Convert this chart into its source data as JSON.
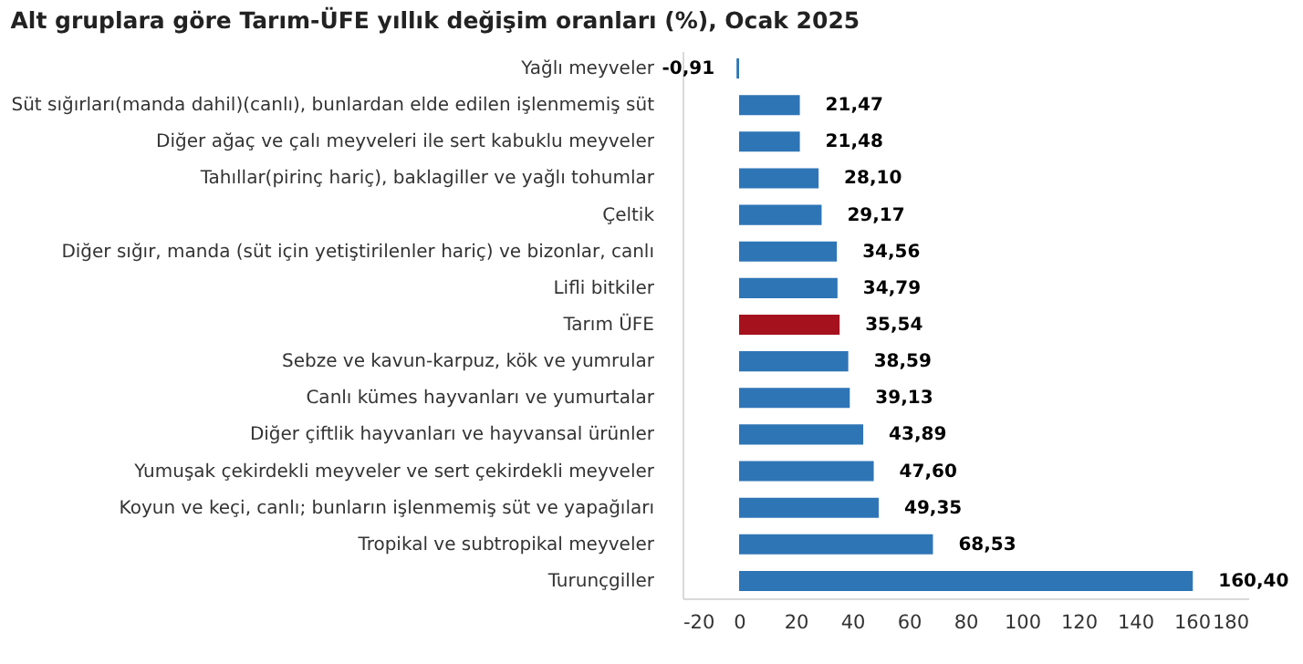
{
  "chart_data": {
    "type": "bar",
    "orientation": "horizontal",
    "title": "Alt gruplara göre Tarım-ÜFE yıllık değişim oranları (%), Ocak 2025",
    "categories": [
      "Yağlı meyveler",
      "Süt sığırları(manda dahil)(canlı), bunlardan elde edilen işlenmemiş süt",
      "Diğer ağaç ve çalı meyveleri ile sert kabuklu meyveler",
      "Tahıllar(pirinç hariç), baklagiller ve yağlı tohumlar",
      "Çeltik",
      "Diğer sığır, manda (süt için yetiştirilenler hariç) ve bizonlar, canlı",
      "Lifli bitkiler",
      "Tarım ÜFE",
      "Sebze ve kavun-karpuz, kök ve yumrular",
      "Canlı kümes hayvanları ve yumurtalar",
      "Diğer çiftlik hayvanları ve hayvansal ürünler",
      "Yumuşak çekirdekli meyveler ve sert çekirdekli meyveler",
      "Koyun ve keçi, canlı; bunların işlenmemiş süt ve yapağıları",
      "Tropikal ve subtropikal meyveler",
      "Turunçgiller"
    ],
    "values": [
      -0.91,
      21.47,
      21.48,
      28.1,
      29.17,
      34.56,
      34.79,
      35.54,
      38.59,
      39.13,
      43.89,
      47.6,
      49.35,
      68.53,
      160.4
    ],
    "value_labels": [
      "-0,91",
      "21,47",
      "21,48",
      "28,10",
      "29,17",
      "34,56",
      "34,79",
      "35,54",
      "38,59",
      "39,13",
      "43,89",
      "47,60",
      "49,35",
      "68,53",
      "160,40"
    ],
    "colors": [
      "#2e75b6",
      "#2e75b6",
      "#2e75b6",
      "#2e75b6",
      "#2e75b6",
      "#2e75b6",
      "#2e75b6",
      "#a5111c",
      "#2e75b6",
      "#2e75b6",
      "#2e75b6",
      "#2e75b6",
      "#2e75b6",
      "#2e75b6",
      "#2e75b6"
    ],
    "xlim": [
      -20,
      180
    ],
    "xticks": [
      -20,
      0,
      20,
      40,
      60,
      80,
      100,
      120,
      140,
      160,
      180
    ],
    "grid": false
  }
}
